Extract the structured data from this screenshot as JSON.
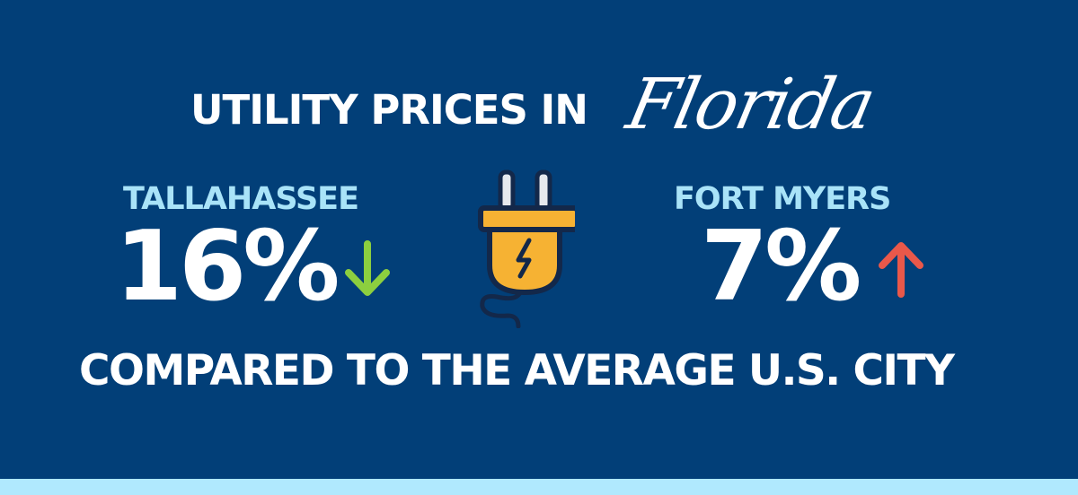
{
  "header": {
    "title": "UTILITY PRICES IN",
    "title_script": "Florida"
  },
  "left": {
    "city": "TALLAHASSEE",
    "percent": "16%",
    "direction": "down",
    "arrow_icon": "arrow-down-icon",
    "arrow_color": "#8ccf3f"
  },
  "right": {
    "city": "FORT MYERS",
    "percent": "7%",
    "direction": "up",
    "arrow_icon": "arrow-up-icon",
    "arrow_color": "#e9584a"
  },
  "center_icon": "electric-plug-icon",
  "footer": {
    "text": "COMPARED TO THE AVERAGE U.S. CITY"
  },
  "colors": {
    "background": "#023f78",
    "accent": "#a9e3f8",
    "strip": "#b0e9fe",
    "plug": "#f6b233"
  }
}
